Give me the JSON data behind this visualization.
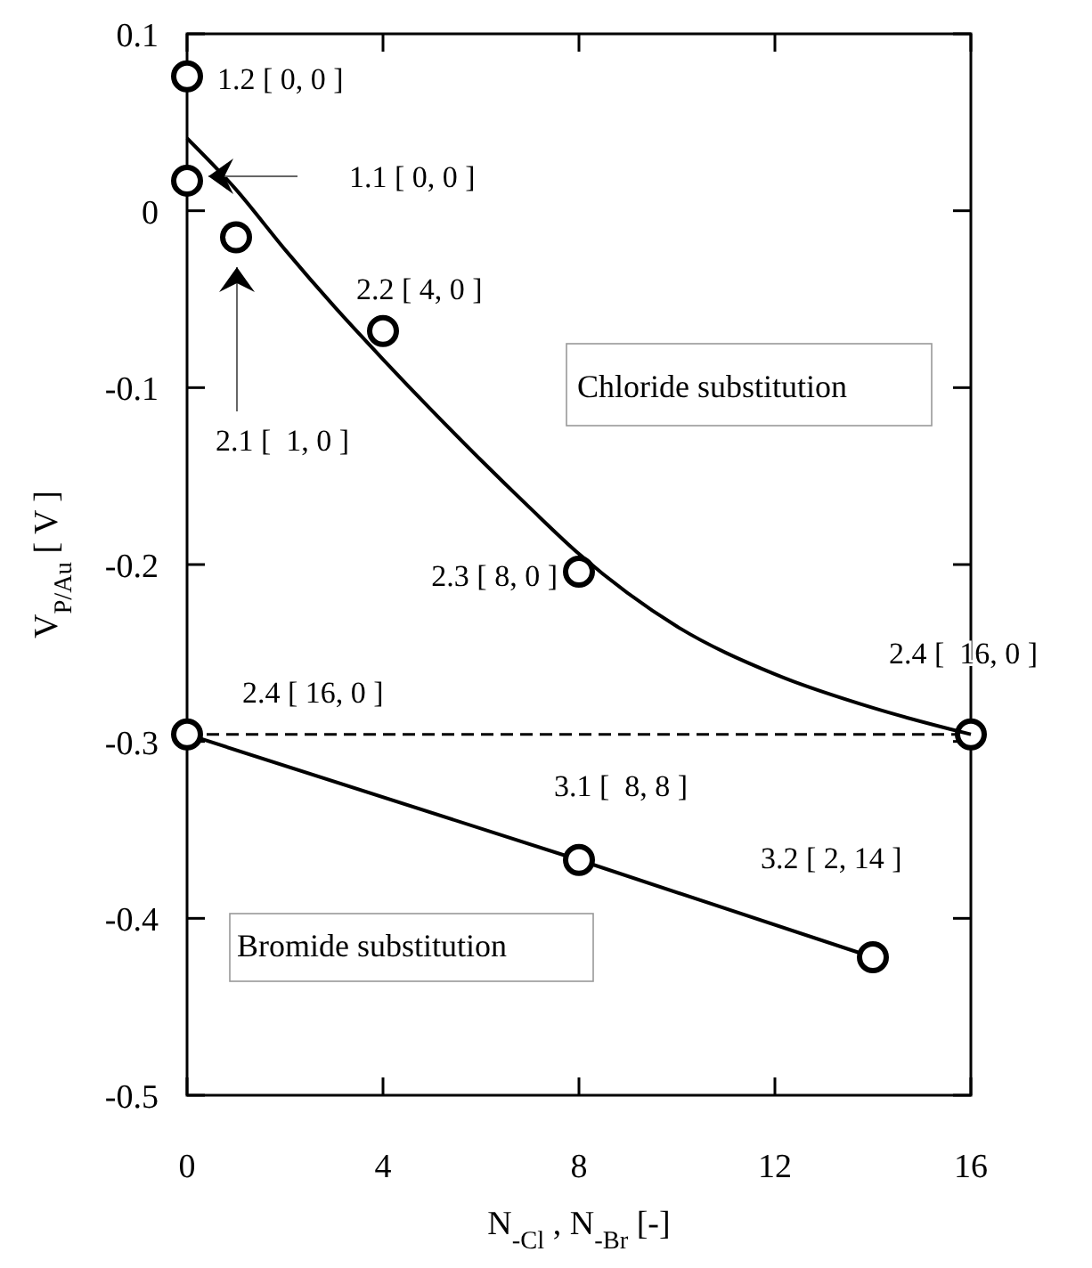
{
  "chart_data": {
    "type": "line",
    "xlabel": "N$_{-Cl}$ , N$_{-Br}$ [-]",
    "ylabel": "V$_{P/Au}$ [ V ]",
    "xlim": [
      0,
      16
    ],
    "xticks": [
      0,
      4,
      8,
      12,
      16
    ],
    "ylim": [
      -0.5,
      0.1
    ],
    "yticks": [
      -0.5,
      -0.4,
      -0.3,
      -0.2,
      -0.1,
      0,
      0.1
    ],
    "grid": false,
    "series": [
      {
        "type": "scatter",
        "color": "#000000",
        "marker": "circle",
        "x": [
          0,
          0,
          1,
          4,
          8,
          16
        ],
        "values": [
          0.076,
          0.017,
          -0.015,
          -0.068,
          -0.204,
          -0.296
        ]
      },
      {
        "type": "line",
        "color": "#000000",
        "line_style": "solid",
        "x": [
          0,
          1,
          2,
          3,
          4,
          5,
          6,
          7,
          8,
          10,
          12,
          14,
          16
        ],
        "values": [
          0.041,
          0.012,
          -0.022,
          -0.054,
          -0.084,
          -0.113,
          -0.141,
          -0.168,
          -0.194,
          -0.235,
          -0.262,
          -0.281,
          -0.296
        ]
      },
      {
        "type": "line",
        "color": "#000000",
        "marker": "circle",
        "line_style": "solid",
        "x": [
          0,
          8,
          14
        ],
        "values": [
          -0.296,
          -0.367,
          -0.422
        ]
      }
    ],
    "ref_lines": [
      {
        "axis": "y",
        "value": -0.296,
        "line_style": "dashed",
        "color": "#000000"
      }
    ],
    "annotations": [
      {
        "text": "1.2 [ 0, 0 ]",
        "x": 0,
        "y": 0.076
      },
      "1.1 [ 0, 0 ]",
      "2.1 [  1, 0 ]",
      {
        "text": "2.2 [ 4, 0 ]",
        "x": 4,
        "y": -0.068
      },
      {
        "text": "2.3 [ 8, 0 ]",
        "x": 8,
        "y": -0.204
      },
      {
        "text": "2.4 [ 16, 0 ]",
        "x": 0,
        "y": -0.296
      },
      {
        "text": "2.4 [  16, 0 ]",
        "x": 16,
        "y": -0.296
      },
      {
        "text": "3.1 [  8, 8 ]",
        "x": 8,
        "y": -0.367
      },
      {
        "text": "3.2 [ 2, 14 ]",
        "x": 14,
        "y": -0.422
      },
      "Chloride substitution",
      "Bromide substitution"
    ]
  }
}
